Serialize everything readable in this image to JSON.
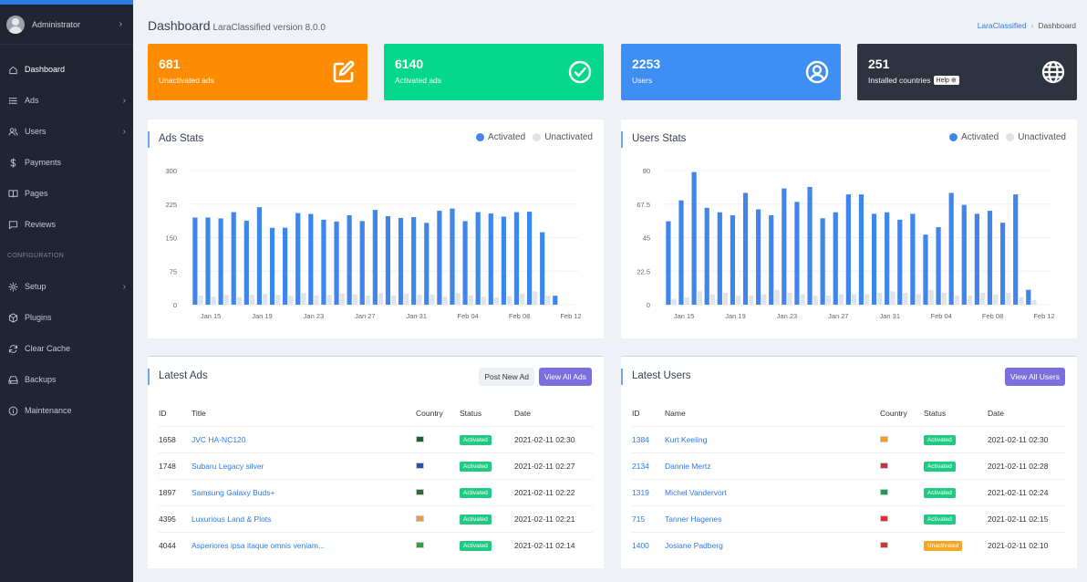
{
  "sidebar": {
    "user": "Administrator",
    "items": [
      {
        "label": "Dashboard",
        "icon": "home-icon",
        "active": true,
        "chevron": false
      },
      {
        "label": "Ads",
        "icon": "list-icon",
        "active": false,
        "chevron": true
      },
      {
        "label": "Users",
        "icon": "users-icon",
        "active": false,
        "chevron": true
      },
      {
        "label": "Payments",
        "icon": "dollar-icon",
        "active": false,
        "chevron": false
      },
      {
        "label": "Pages",
        "icon": "book-icon",
        "active": false,
        "chevron": false
      },
      {
        "label": "Reviews",
        "icon": "message-icon",
        "active": false,
        "chevron": false
      }
    ],
    "section_label": "CONFIGURATION",
    "config_items": [
      {
        "label": "Setup",
        "icon": "gear-icon",
        "chevron": true
      },
      {
        "label": "Plugins",
        "icon": "package-icon",
        "chevron": false
      },
      {
        "label": "Clear Cache",
        "icon": "refresh-icon",
        "chevron": false
      },
      {
        "label": "Backups",
        "icon": "hard-drive-icon",
        "chevron": false
      },
      {
        "label": "Maintenance",
        "icon": "info-icon",
        "chevron": false
      }
    ]
  },
  "header": {
    "title": "Dashboard",
    "version": "LaraClassified version 8.0.0",
    "breadcrumb": {
      "root": "LaraClassified",
      "current": "Dashboard"
    }
  },
  "stats": [
    {
      "value": "681",
      "label": "Unactivated ads",
      "color": "#fd8c03",
      "icon": "edit-icon"
    },
    {
      "value": "6140",
      "label": "Activated ads",
      "color": "#05d88c",
      "icon": "check-circle-icon"
    },
    {
      "value": "2253",
      "label": "Users",
      "color": "#3e8ef3",
      "icon": "user-circle-icon"
    },
    {
      "value": "251",
      "label": "Installed countries",
      "color": "#2d3440",
      "icon": "globe-icon",
      "badge": "Help"
    }
  ],
  "ads_stats": {
    "title": "Ads Stats",
    "legend_activated": "Activated",
    "legend_unactivated": "Unactivated"
  },
  "users_stats": {
    "title": "Users Stats",
    "legend_activated": "Activated",
    "legend_unactivated": "Unactivated"
  },
  "chart_data": [
    {
      "type": "bar",
      "x": [
        "Jan 14",
        "Jan 15",
        "Jan 16",
        "Jan 17",
        "Jan 18",
        "Jan 19",
        "Jan 20",
        "Jan 21",
        "Jan 22",
        "Jan 23",
        "Jan 24",
        "Jan 25",
        "Jan 26",
        "Jan 27",
        "Jan 28",
        "Jan 29",
        "Jan 30",
        "Jan 31",
        "Feb 01",
        "Feb 02",
        "Feb 03",
        "Feb 04",
        "Feb 05",
        "Feb 06",
        "Feb 07",
        "Feb 08",
        "Feb 09",
        "Feb 10",
        "Feb 11",
        "Feb 12"
      ],
      "tick_labels": [
        "Jan 15",
        "Jan 19",
        "Jan 23",
        "Jan 27",
        "Jan 31",
        "Feb 04",
        "Feb 08",
        "Feb 12"
      ],
      "series": [
        {
          "name": "Activated",
          "color": "#3e86ec",
          "values": [
            195,
            195,
            193,
            207,
            188,
            218,
            172,
            172,
            205,
            203,
            190,
            186,
            200,
            187,
            212,
            198,
            194,
            196,
            183,
            210,
            215,
            187,
            207,
            204,
            197,
            207,
            208,
            162,
            20,
            0
          ]
        },
        {
          "name": "Unactivated",
          "color": "#e0e3e8",
          "values": [
            20,
            18,
            22,
            17,
            22,
            24,
            22,
            20,
            26,
            21,
            22,
            25,
            23,
            20,
            26,
            21,
            25,
            22,
            23,
            18,
            26,
            21,
            18,
            16,
            19,
            25,
            30,
            20,
            0,
            0
          ]
        }
      ],
      "ylim": [
        0,
        300
      ],
      "yticks": [
        0,
        75,
        150,
        225,
        300
      ]
    },
    {
      "type": "bar",
      "x": [
        "Jan 14",
        "Jan 15",
        "Jan 16",
        "Jan 17",
        "Jan 18",
        "Jan 19",
        "Jan 20",
        "Jan 21",
        "Jan 22",
        "Jan 23",
        "Jan 24",
        "Jan 25",
        "Jan 26",
        "Jan 27",
        "Jan 28",
        "Jan 29",
        "Jan 30",
        "Jan 31",
        "Feb 01",
        "Feb 02",
        "Feb 03",
        "Feb 04",
        "Feb 05",
        "Feb 06",
        "Feb 07",
        "Feb 08",
        "Feb 09",
        "Feb 10",
        "Feb 11",
        "Feb 12"
      ],
      "tick_labels": [
        "Jan 15",
        "Jan 19",
        "Jan 23",
        "Jan 27",
        "Jan 31",
        "Feb 04",
        "Feb 08",
        "Feb 12"
      ],
      "series": [
        {
          "name": "Activated",
          "color": "#3e86ec",
          "values": [
            56,
            70,
            89,
            65,
            62,
            60,
            75,
            64,
            60,
            78,
            69,
            79,
            58,
            62,
            74,
            74,
            61,
            62,
            57,
            61,
            47,
            52,
            75,
            67,
            61,
            63,
            55,
            74,
            10,
            0
          ]
        },
        {
          "name": "Unactivated",
          "color": "#e0e3e8",
          "values": [
            4,
            5,
            9,
            7,
            8,
            6,
            6,
            7,
            10,
            8,
            7,
            6,
            6,
            7,
            7,
            7,
            8,
            9,
            8,
            7,
            10,
            8,
            6,
            6,
            8,
            7,
            8,
            5,
            3,
            0
          ]
        }
      ],
      "ylim": [
        0,
        90
      ],
      "yticks": [
        0,
        22.5,
        45,
        67.5,
        90
      ]
    }
  ],
  "latest_ads": {
    "title": "Latest Ads",
    "post_btn": "Post New Ad",
    "view_btn": "View All Ads",
    "headers": [
      "ID",
      "Title",
      "Country",
      "Status",
      "Date"
    ],
    "rows": [
      {
        "id": "1658",
        "title": "JVC HA-NC120",
        "flag": "#1f5e3a",
        "status": "Activated",
        "date": "2021-02-11 02:30"
      },
      {
        "id": "1748",
        "title": "Subaru Legacy silver",
        "flag": "#2b4fb8",
        "status": "Activated",
        "date": "2021-02-11 02:27"
      },
      {
        "id": "1897",
        "title": "Samsung Galaxy Buds+",
        "flag": "#2d6a3a",
        "status": "Activated",
        "date": "2021-02-11 02:22"
      },
      {
        "id": "4395",
        "title": "Luxurious Land & Plots",
        "flag": "#f19a34",
        "status": "Activated",
        "date": "2021-02-11 02:21"
      },
      {
        "id": "4044",
        "title": "Asperiores ipsa itaque omnis veniam...",
        "flag": "#2c9f46",
        "status": "Activated",
        "date": "2021-02-11 02:14"
      }
    ]
  },
  "latest_users": {
    "title": "Latest Users",
    "view_btn": "View All Users",
    "headers": [
      "ID",
      "Name",
      "Country",
      "Status",
      "Date"
    ],
    "rows": [
      {
        "id": "1384",
        "name": "Kurt Keeling",
        "flag": "#e3a325",
        "status": "Activated",
        "date": "2021-02-11 02:30"
      },
      {
        "id": "2134",
        "name": "Dannie Mertz",
        "flag": "#b73a4a",
        "status": "Activated",
        "date": "2021-02-11 02:28"
      },
      {
        "id": "1319",
        "name": "Michel Vandervort",
        "flag": "#1f9a4b",
        "status": "Activated",
        "date": "2021-02-11 02:24"
      },
      {
        "id": "715",
        "name": "Tanner Hagenes",
        "flag": "#d9322c",
        "status": "Activated",
        "date": "2021-02-11 02:15"
      },
      {
        "id": "1400",
        "name": "Josiane Padberg",
        "flag": "#b84040",
        "status": "Unactivated",
        "date": "2021-02-11 02:10"
      }
    ]
  },
  "colors": {
    "activated_badge": "#1fca83",
    "unactivated_badge": "#f5a623",
    "bar_active": "#3e86ec",
    "bar_inactive": "#e0e3e8"
  }
}
